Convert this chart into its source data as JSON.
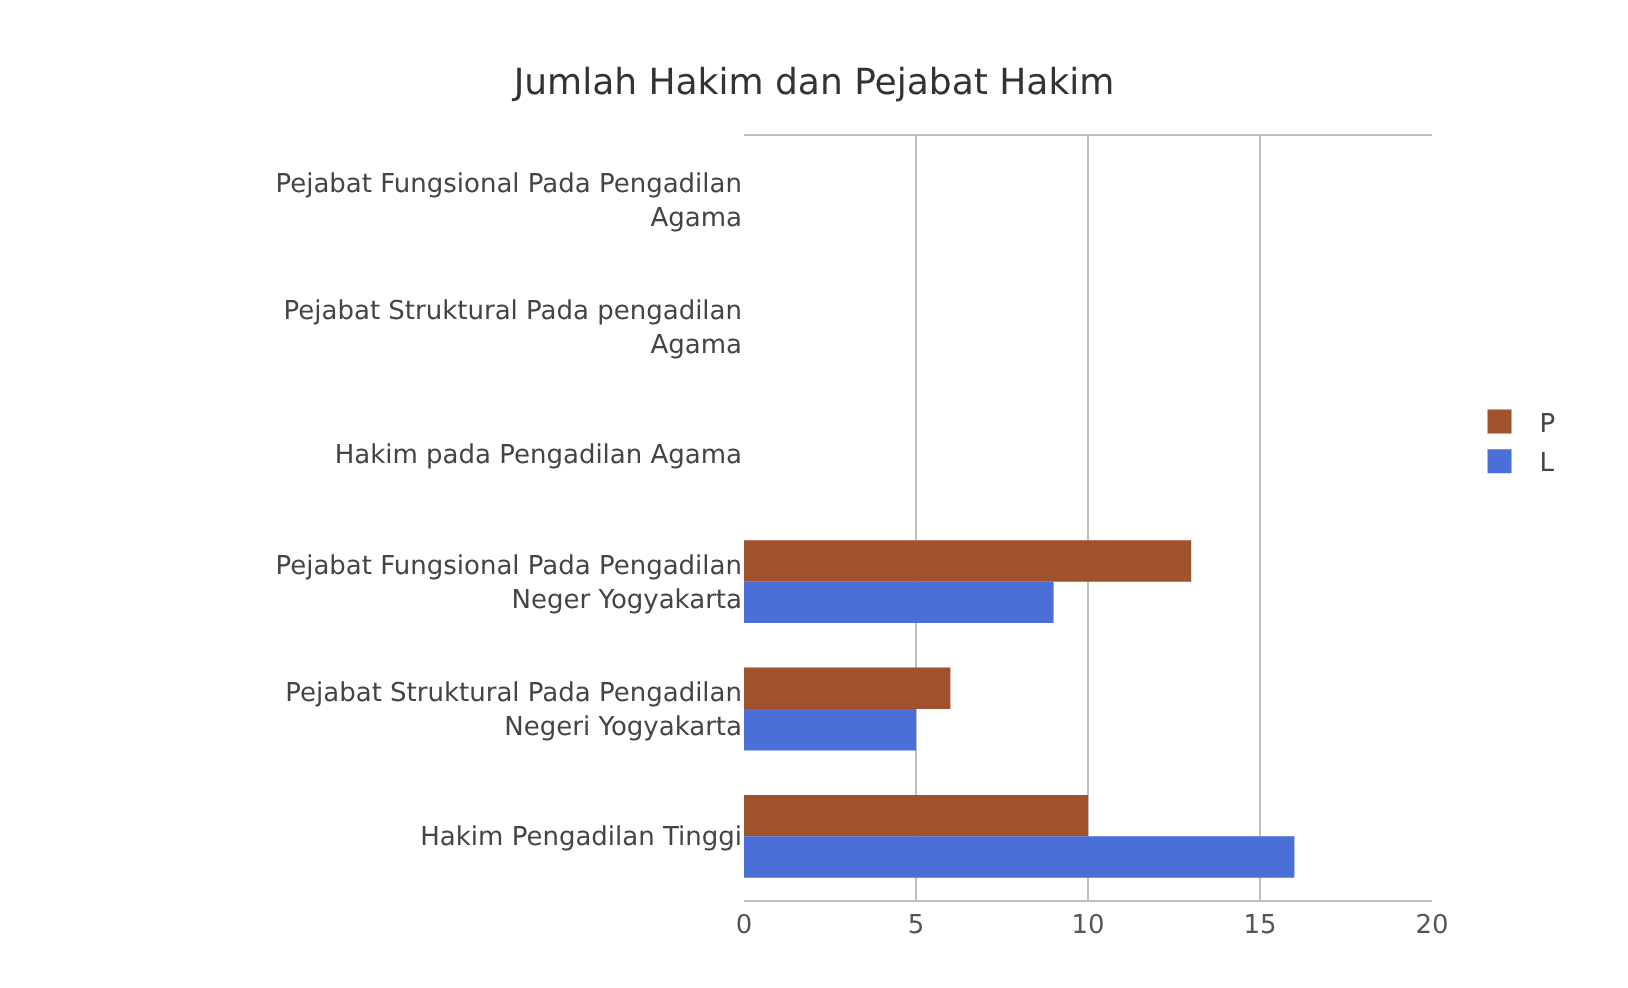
{
  "chart_data": {
    "type": "bar",
    "orientation": "horizontal",
    "title": "Jumlah Hakim dan Pejabat Hakim",
    "categories": [
      "Pejabat Fungsional Pada Pengadilan Agama",
      "Pejabat Struktural Pada pengadilan Agama",
      "Hakim pada Pengadilan Agama",
      "Pejabat Fungsional Pada Pengadilan Neger Yogyakarta",
      "Pejabat Struktural Pada Pengadilan Negeri Yogyakarta",
      "Hakim Pengadilan Tinggi"
    ],
    "series": [
      {
        "name": "P",
        "color": "#a0522d",
        "values": [
          null,
          null,
          null,
          13,
          6,
          10
        ]
      },
      {
        "name": "L",
        "color": "#4a6fd6",
        "values": [
          null,
          null,
          null,
          9,
          5,
          16
        ]
      }
    ],
    "xlim": [
      0,
      20
    ],
    "xticks": [
      0,
      5,
      10,
      15,
      20
    ],
    "grid": "x",
    "legend": "right"
  }
}
